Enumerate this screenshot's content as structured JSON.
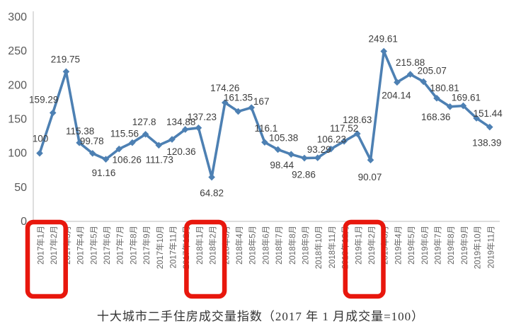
{
  "chart_data": {
    "type": "line",
    "title": "十大城市二手住房成交量指数（2017 年 1 月成交量=100）",
    "xlabel": "",
    "ylabel": "",
    "ylim": [
      0,
      300
    ],
    "y_ticks": [
      300,
      250,
      200,
      150,
      100,
      50,
      0
    ],
    "grid": false,
    "legend_position": "none",
    "series_name": "十大城市二手住房成交量指数",
    "series_color": "#4d80b3",
    "data_label_color": "#3d3d3d",
    "axis_line_color": "#c9c9c9",
    "tick_label_color": "#595959",
    "x_label_color": "#666666",
    "highlight_color": "#e8170d",
    "points": [
      {
        "category": "2017年1月",
        "value": 100,
        "label": "100",
        "offset": [
          1,
          -16
        ]
      },
      {
        "category": "2017年2月",
        "value": 159.29,
        "label": "159.29",
        "offset": [
          -13,
          -14
        ]
      },
      {
        "category": "2017年3月",
        "value": 219.75,
        "label": "219.75",
        "offset": [
          -1,
          -13
        ]
      },
      {
        "category": "2017年4月",
        "value": 115.38,
        "label": "115.38",
        "offset": [
          1,
          -12
        ]
      },
      {
        "category": "2017年5月",
        "value": 99.78,
        "label": "99.78",
        "offset": [
          -1,
          -13
        ]
      },
      {
        "category": "2017年6月",
        "value": 91.16,
        "label": "91.16",
        "offset": [
          -3,
          24
        ]
      },
      {
        "category": "2017年7月",
        "value": 106.26,
        "label": "106.26",
        "offset": [
          11,
          20
        ]
      },
      {
        "category": "2017年8月",
        "value": 115.56,
        "label": "115.56",
        "offset": [
          -11,
          -8
        ]
      },
      {
        "category": "2017年9月",
        "value": 127.8,
        "label": "127.8",
        "offset": [
          -2,
          -13
        ]
      },
      {
        "category": "2017年10月",
        "value": 111.73,
        "label": "111.73",
        "offset": [
          1,
          25
        ]
      },
      {
        "category": "2017年11月",
        "value": 120.36,
        "label": "120.36",
        "offset": [
          13,
          22
        ]
      },
      {
        "category": "2017年12月",
        "value": 134.88,
        "label": "134.88",
        "offset": [
          -6,
          -6
        ]
      },
      {
        "category": "2018年1月",
        "value": 137.23,
        "label": "137.23",
        "offset": [
          5,
          -11
        ]
      },
      {
        "category": "2018年2月",
        "value": 64.82,
        "label": "64.82",
        "offset": [
          0,
          27
        ]
      },
      {
        "category": "2018年3月",
        "value": 174.26,
        "label": "174.26",
        "offset": [
          0,
          -16
        ]
      },
      {
        "category": "2018年4月",
        "value": 161.35,
        "label": "161.35",
        "offset": [
          0,
          -15
        ]
      },
      {
        "category": "2018年5月",
        "value": 167,
        "label": "167",
        "offset": [
          14,
          -4
        ]
      },
      {
        "category": "2018年6月",
        "value": 116.1,
        "label": "116.1",
        "offset": [
          2,
          -15
        ]
      },
      {
        "category": "2018年7月",
        "value": 105.38,
        "label": "105.38",
        "offset": [
          8,
          -12
        ]
      },
      {
        "category": "2018年8月",
        "value": 98.44,
        "label": "98.44",
        "offset": [
          -13,
          20
        ]
      },
      {
        "category": "2018年9月",
        "value": 92.86,
        "label": "92.86",
        "offset": [
          -1,
          28
        ]
      },
      {
        "category": "2018年10月",
        "value": 93.29,
        "label": "93.29",
        "offset": [
          2,
          -7
        ]
      },
      {
        "category": "2018年11月",
        "value": 106.23,
        "label": "106.23",
        "offset": [
          1,
          -9
        ]
      },
      {
        "category": "2018年12月",
        "value": 117.52,
        "label": "117.52",
        "offset": [
          0,
          -14
        ]
      },
      {
        "category": "2019年1月",
        "value": 128.63,
        "label": "128.63",
        "offset": [
          0,
          -15
        ]
      },
      {
        "category": "2019年2月",
        "value": 90.07,
        "label": "90.07",
        "offset": [
          -1,
          29
        ]
      },
      {
        "category": "2019年3月",
        "value": 249.61,
        "label": "249.61",
        "offset": [
          -1,
          -13
        ]
      },
      {
        "category": "2019年4月",
        "value": 204.14,
        "label": "204.14",
        "offset": [
          -1,
          23
        ]
      },
      {
        "category": "2019年5月",
        "value": 215.88,
        "label": "215.88",
        "offset": [
          0,
          -12
        ]
      },
      {
        "category": "2019年6月",
        "value": 205.07,
        "label": "205.07",
        "offset": [
          12,
          -11
        ]
      },
      {
        "category": "2019年7月",
        "value": 180.81,
        "label": "180.81",
        "offset": [
          11,
          -10
        ]
      },
      {
        "category": "2019年8月",
        "value": 168.36,
        "label": "168.36",
        "offset": [
          -20,
          19
        ]
      },
      {
        "category": "2019年9月",
        "value": 169.61,
        "label": "169.61",
        "offset": [
          4,
          -7
        ]
      },
      {
        "category": "2019年10月",
        "value": 151.44,
        "label": "151.44",
        "offset": [
          16,
          -2
        ]
      },
      {
        "category": "2019年11月",
        "value": 138.39,
        "label": "138.39",
        "offset": [
          -4,
          27
        ]
      }
    ],
    "highlighted_category_pairs": [
      [
        0,
        1
      ],
      [
        12,
        13
      ],
      [
        24,
        25
      ]
    ],
    "highlighted_categories": [
      "2017年1月",
      "2017年2月",
      "2018年1月",
      "2018年2月",
      "2019年1月",
      "2019年2月"
    ]
  }
}
